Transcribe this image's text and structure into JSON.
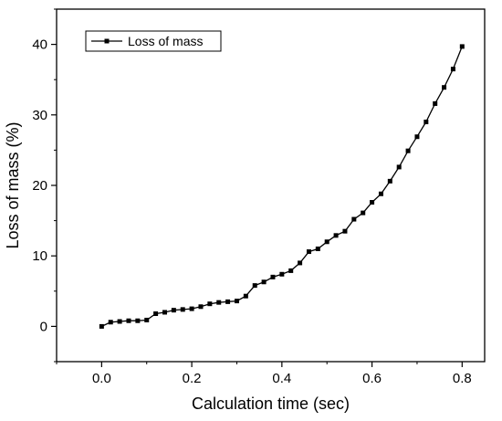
{
  "chart_data": {
    "type": "line",
    "title": "",
    "xlabel": "Calculation time (sec)",
    "ylabel": "Loss of mass (%)",
    "xlim": [
      -0.1,
      0.85
    ],
    "ylim": [
      -5,
      45
    ],
    "xticks": [
      "0.0",
      "0.2",
      "0.4",
      "0.6",
      "0.8"
    ],
    "yticks": [
      "0",
      "10",
      "20",
      "30",
      "40"
    ],
    "grid": false,
    "legend": "top-left",
    "line_color": "#000000",
    "marker": "square",
    "series": [
      {
        "name": "Loss of mass",
        "x": [
          0.0,
          0.02,
          0.04,
          0.06,
          0.08,
          0.1,
          0.12,
          0.14,
          0.16,
          0.18,
          0.2,
          0.22,
          0.24,
          0.26,
          0.28,
          0.3,
          0.32,
          0.34,
          0.36,
          0.38,
          0.4,
          0.42,
          0.44,
          0.46,
          0.48,
          0.5,
          0.52,
          0.54,
          0.56,
          0.58,
          0.6,
          0.62,
          0.64,
          0.66,
          0.68,
          0.7,
          0.72,
          0.74,
          0.76,
          0.78,
          0.8
        ],
        "y": [
          0.0,
          0.6,
          0.7,
          0.8,
          0.8,
          0.9,
          1.8,
          2.0,
          2.3,
          2.4,
          2.5,
          2.8,
          3.2,
          3.4,
          3.5,
          3.6,
          4.3,
          5.8,
          6.3,
          7.0,
          7.4,
          7.9,
          9.0,
          10.6,
          11.0,
          12.0,
          12.9,
          13.5,
          15.2,
          16.1,
          17.6,
          18.8,
          20.6,
          22.6,
          24.9,
          26.9,
          29.0,
          31.6,
          33.9,
          36.5,
          39.7
        ]
      }
    ]
  }
}
